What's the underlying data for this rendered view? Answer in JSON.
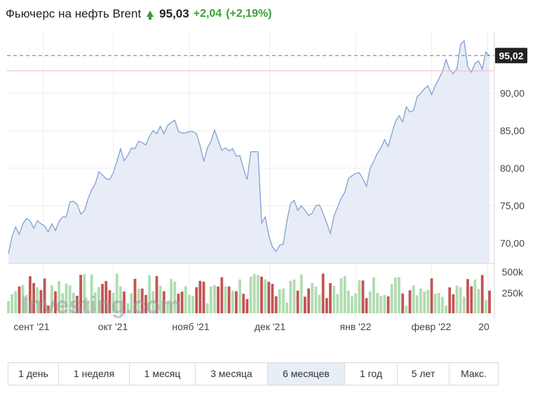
{
  "header": {
    "title": "Фьючерс на нефть Brent",
    "price": "95,03",
    "change": "+2,04",
    "change_pct": "(+2,19%)",
    "trend_icon": "up-arrow-icon",
    "up_color": "#3aa13a"
  },
  "tabs": [
    {
      "label": "1 день",
      "active": false
    },
    {
      "label": "1 неделя",
      "active": false
    },
    {
      "label": "1 месяц",
      "active": false
    },
    {
      "label": "3 месяца",
      "active": false
    },
    {
      "label": "6 месяцев",
      "active": true
    },
    {
      "label": "1 год",
      "active": false
    },
    {
      "label": "5 лет",
      "active": false
    },
    {
      "label": "Макс.",
      "active": false
    }
  ],
  "watermark": "Investing.com",
  "chart_data": {
    "type": "area",
    "ylim": [
      67.5,
      97.5
    ],
    "yticks": [
      70,
      75,
      80,
      85,
      90
    ],
    "ytick_labels": [
      "70,00",
      "75,00",
      "80,00",
      "85,00",
      "90,00"
    ],
    "current_price": 95.02,
    "current_price_label": "95,02",
    "prev_close": 92.99,
    "xtick_labels": [
      "сент '21",
      "окт '21",
      "нояб '21",
      "дек '21",
      "янв '22",
      "февр '22",
      "20"
    ],
    "values": [
      68.6,
      70.9,
      72.2,
      71.2,
      72.6,
      73.3,
      73.0,
      72.0,
      73.0,
      72.6,
      72.3,
      71.5,
      72.6,
      71.7,
      72.9,
      73.5,
      73.5,
      75.5,
      75.6,
      75.2,
      73.9,
      74.3,
      75.9,
      77.1,
      77.9,
      79.5,
      79.1,
      78.6,
      78.5,
      79.4,
      80.9,
      82.6,
      81.0,
      81.7,
      82.7,
      82.6,
      83.6,
      83.4,
      83.1,
      84.3,
      85.0,
      84.6,
      85.6,
      84.6,
      85.7,
      86.1,
      86.4,
      84.9,
      84.7,
      84.7,
      84.9,
      84.9,
      84.6,
      83.0,
      80.9,
      82.7,
      83.6,
      85.1,
      83.7,
      82.4,
      82.7,
      82.3,
      82.6,
      81.6,
      81.7,
      79.9,
      78.5,
      82.2,
      82.2,
      82.2,
      72.7,
      73.5,
      71.0,
      69.5,
      68.9,
      69.7,
      69.9,
      73.0,
      75.3,
      75.7,
      74.4,
      75.0,
      74.4,
      73.7,
      74.0,
      75.0,
      75.1,
      74.0,
      72.7,
      71.3,
      73.6,
      74.8,
      76.0,
      76.8,
      78.6,
      79.0,
      79.3,
      79.4,
      78.6,
      77.6,
      80.0,
      80.9,
      82.0,
      82.7,
      83.8,
      82.9,
      84.6,
      86.2,
      87.0,
      86.2,
      88.2,
      87.5,
      87.7,
      89.5,
      90.0,
      90.6,
      91.0,
      89.8,
      91.0,
      91.9,
      92.9,
      94.5,
      93.1,
      92.6,
      93.3,
      96.5,
      97.0,
      93.5,
      92.8,
      94.0,
      94.3,
      93.2,
      95.5,
      95.0
    ]
  },
  "volume": {
    "ytick_labels": [
      "500k",
      "250k"
    ],
    "up_color": "#b0dcb0",
    "down_color": "#c25555"
  }
}
